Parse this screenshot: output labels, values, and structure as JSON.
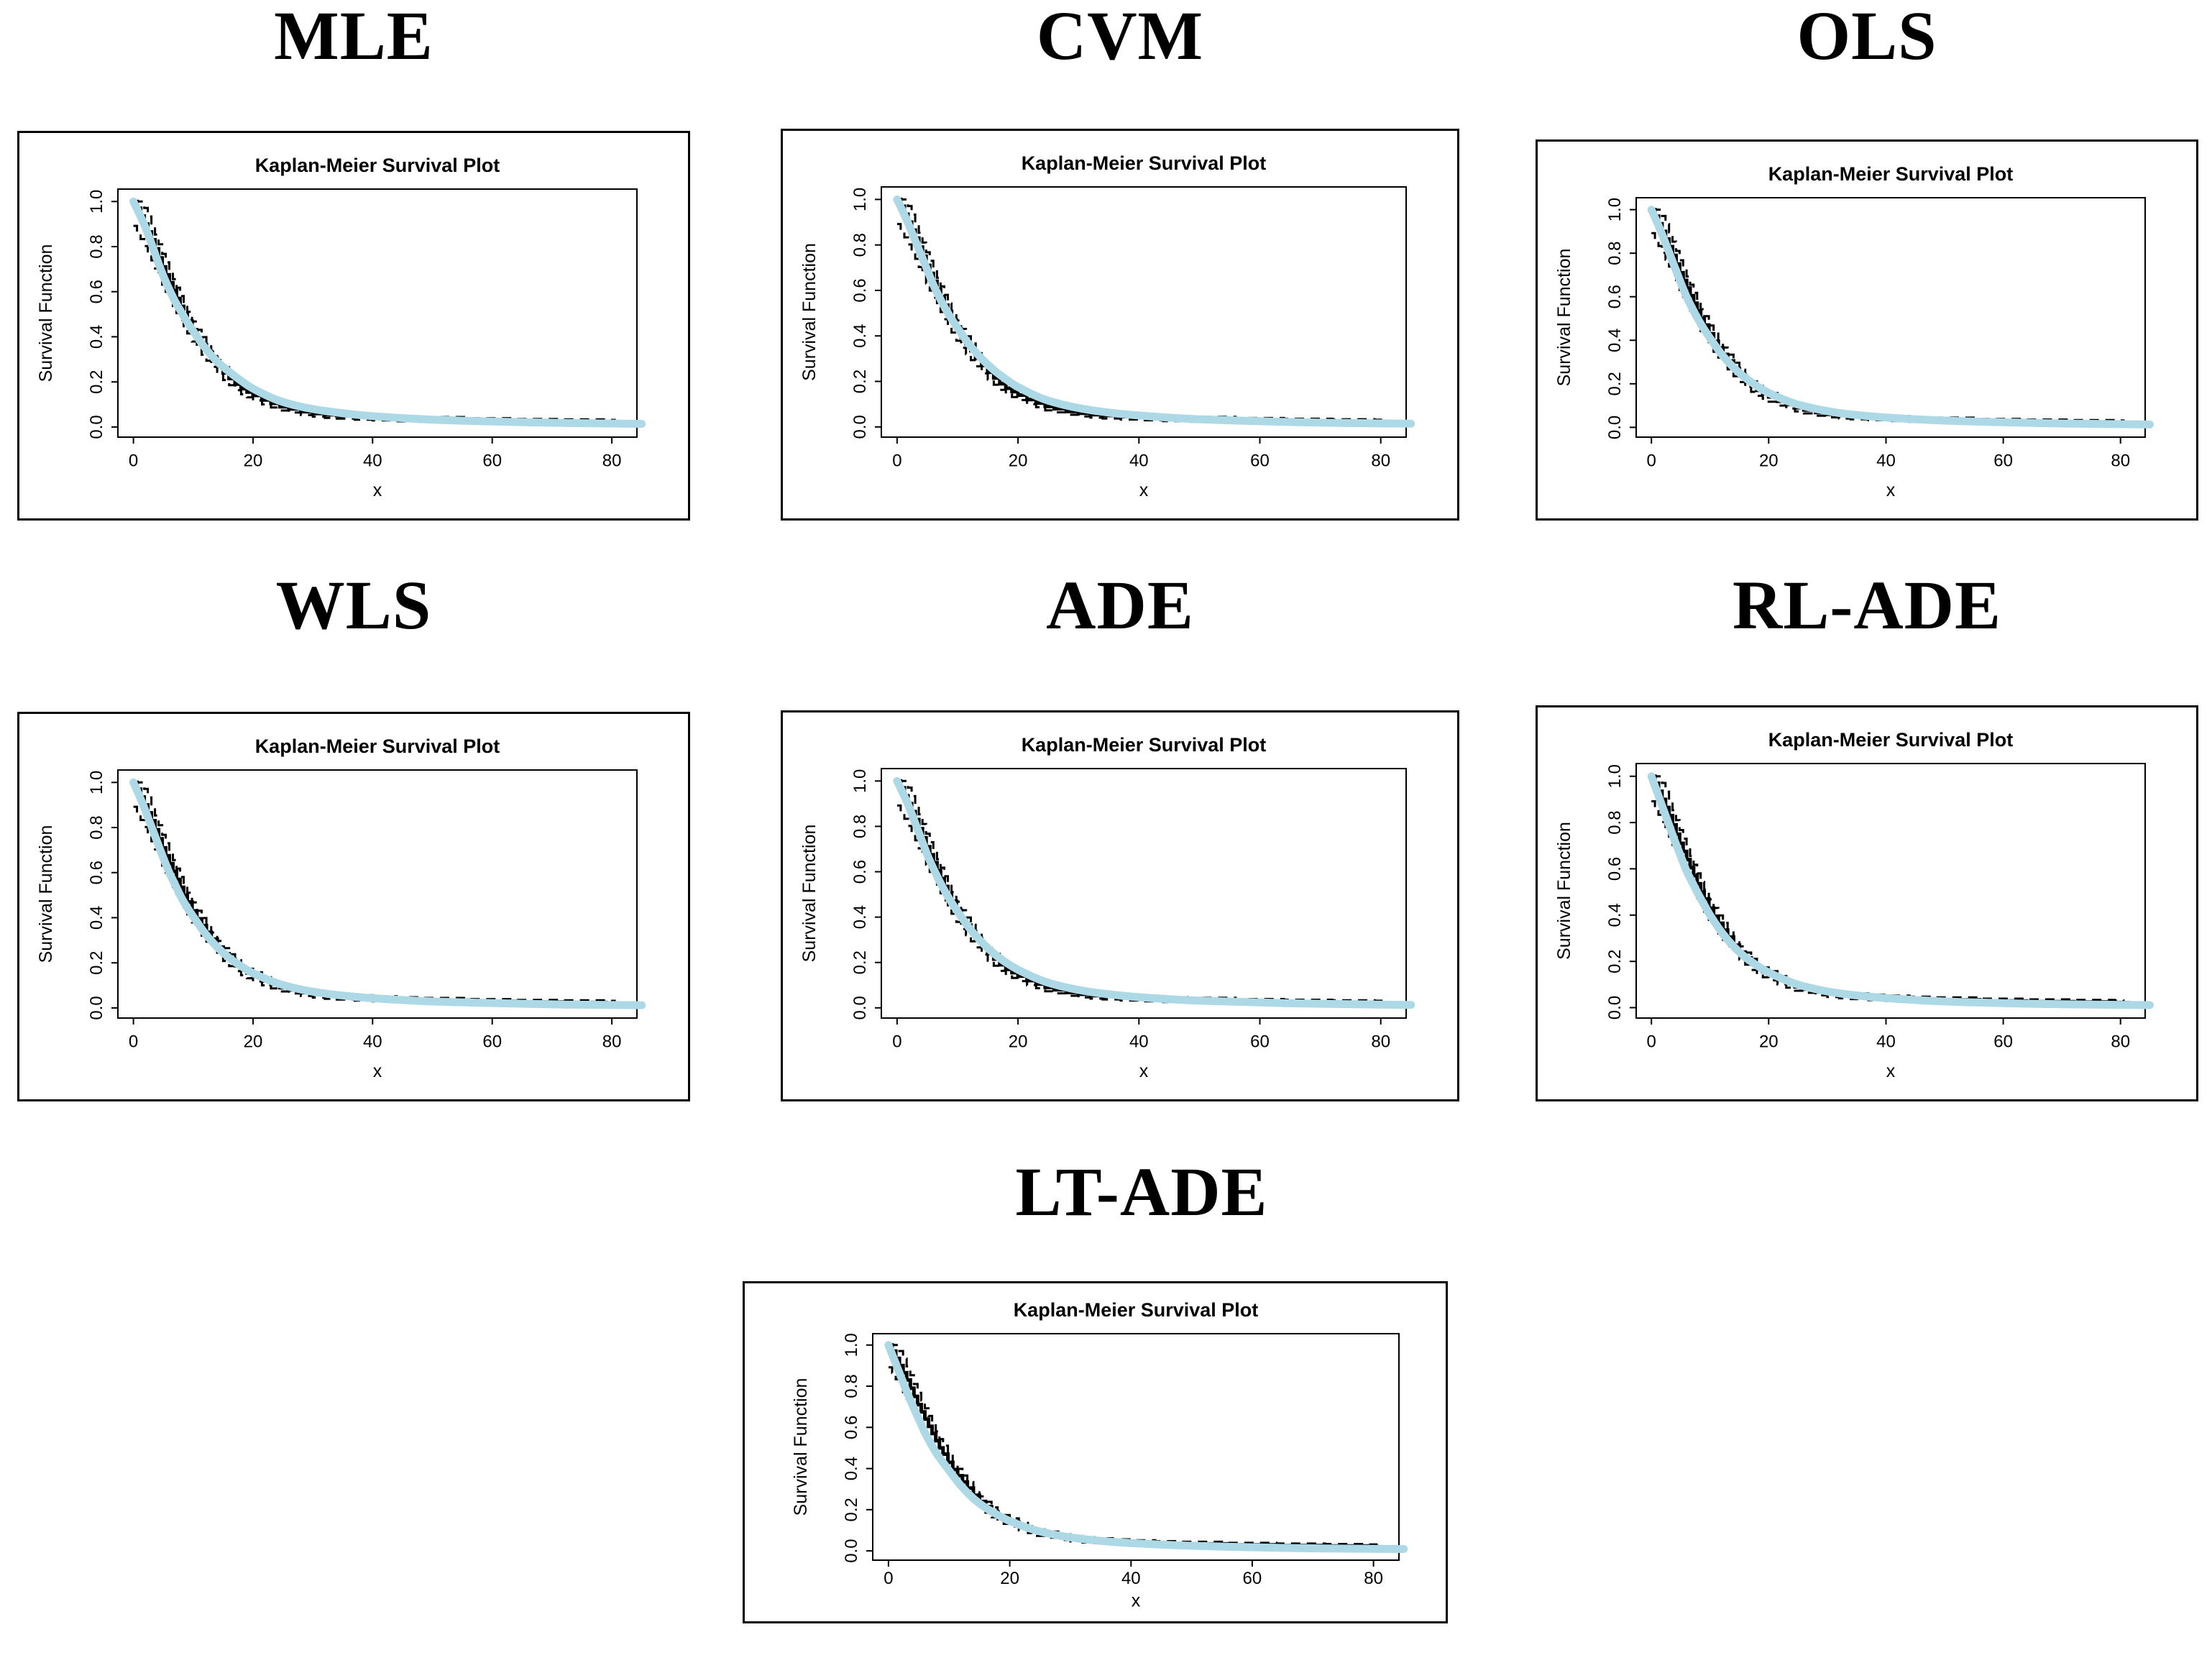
{
  "figure": {
    "kind": "R multi-panel figure",
    "background": "#ffffff",
    "text_color": "#000000"
  },
  "chart_data": {
    "type": "line",
    "description": "Seven Kaplan-Meier survival plots comparing parameter-estimation methods. Each panel shows the same Kaplan-Meier step estimate (solid black, with dashed confidence-band segments) overlaid by a thick light-blue fitted survival curve.",
    "common": {
      "title": "Kaplan-Meier Survival Plot",
      "xlabel": "x",
      "ylabel": "Survival Function",
      "xticks": [
        0,
        20,
        40,
        60,
        80
      ],
      "xtick_labels": [
        "0",
        "20",
        "40",
        "60",
        "80"
      ],
      "yticks": [
        0.0,
        0.2,
        0.4,
        0.6,
        0.8,
        1.0
      ],
      "ytick_labels": [
        "0.0",
        "0.2",
        "0.4",
        "0.6",
        "0.8",
        "1.0"
      ],
      "xlim": [
        0,
        82
      ],
      "ylim": [
        0,
        1
      ],
      "grid": false,
      "legend": "none",
      "box": true,
      "km_color": "#000000",
      "ci_style": "dashed",
      "fit_color": "#ADD8E6"
    },
    "km_estimate": {
      "name": "Kaplan-Meier estimate",
      "style": "step",
      "color": "#000000",
      "x": [
        0,
        0.6,
        1.2,
        1.8,
        2.4,
        3,
        3.6,
        4.2,
        4.8,
        5.4,
        6,
        6.6,
        7.2,
        7.8,
        8.4,
        9,
        9.8,
        10.6,
        11.4,
        12.2,
        13,
        14,
        15,
        16,
        17,
        18,
        19,
        20,
        21.5,
        23,
        24.5,
        26,
        28,
        30,
        32,
        34,
        37,
        40,
        44,
        48,
        56,
        64,
        72,
        79,
        80.5
      ],
      "y": [
        1.0,
        0.97,
        0.935,
        0.9,
        0.865,
        0.83,
        0.79,
        0.75,
        0.71,
        0.675,
        0.64,
        0.605,
        0.57,
        0.535,
        0.5,
        0.47,
        0.43,
        0.395,
        0.365,
        0.335,
        0.305,
        0.27,
        0.24,
        0.215,
        0.19,
        0.17,
        0.155,
        0.14,
        0.12,
        0.105,
        0.09,
        0.08,
        0.068,
        0.06,
        0.054,
        0.05,
        0.045,
        0.041,
        0.037,
        0.034,
        0.029,
        0.026,
        0.024,
        0.022,
        0.015
      ]
    },
    "fit_x": [
      0,
      1,
      2,
      3,
      4,
      5,
      6,
      7,
      8,
      9,
      10,
      12,
      14,
      16,
      18,
      20,
      24,
      28,
      32,
      36,
      40,
      48,
      56,
      64,
      72,
      85
    ],
    "panels": [
      {
        "method": "MLE",
        "fit_y": [
          1.0,
          0.945,
          0.885,
          0.815,
          0.74,
          0.67,
          0.61,
          0.555,
          0.51,
          0.465,
          0.425,
          0.35,
          0.29,
          0.245,
          0.205,
          0.17,
          0.12,
          0.09,
          0.071,
          0.058,
          0.048,
          0.035,
          0.027,
          0.022,
          0.018,
          0.014
        ]
      },
      {
        "method": "CVM",
        "fit_y": [
          1.0,
          0.945,
          0.885,
          0.82,
          0.755,
          0.69,
          0.625,
          0.57,
          0.52,
          0.475,
          0.435,
          0.36,
          0.3,
          0.25,
          0.21,
          0.175,
          0.125,
          0.094,
          0.074,
          0.06,
          0.05,
          0.036,
          0.028,
          0.022,
          0.018,
          0.014
        ]
      },
      {
        "method": "OLS",
        "fit_y": [
          1.0,
          0.94,
          0.875,
          0.805,
          0.735,
          0.665,
          0.6,
          0.545,
          0.495,
          0.45,
          0.41,
          0.335,
          0.275,
          0.228,
          0.19,
          0.158,
          0.113,
          0.085,
          0.066,
          0.054,
          0.045,
          0.033,
          0.026,
          0.021,
          0.017,
          0.013
        ]
      },
      {
        "method": "WLS",
        "fit_y": [
          1.0,
          0.94,
          0.875,
          0.805,
          0.735,
          0.665,
          0.6,
          0.545,
          0.49,
          0.445,
          0.405,
          0.33,
          0.27,
          0.222,
          0.185,
          0.154,
          0.11,
          0.082,
          0.064,
          0.052,
          0.043,
          0.031,
          0.024,
          0.019,
          0.015,
          0.012
        ]
      },
      {
        "method": "ADE",
        "fit_y": [
          1.0,
          0.945,
          0.885,
          0.815,
          0.745,
          0.675,
          0.615,
          0.56,
          0.51,
          0.465,
          0.425,
          0.35,
          0.29,
          0.24,
          0.2,
          0.168,
          0.12,
          0.09,
          0.07,
          0.057,
          0.047,
          0.034,
          0.027,
          0.021,
          0.017,
          0.013
        ]
      },
      {
        "method": "RL-ADE",
        "fit_y": [
          1.0,
          0.93,
          0.86,
          0.79,
          0.72,
          0.655,
          0.59,
          0.54,
          0.49,
          0.445,
          0.4,
          0.325,
          0.265,
          0.218,
          0.182,
          0.152,
          0.108,
          0.08,
          0.062,
          0.05,
          0.041,
          0.029,
          0.022,
          0.017,
          0.014,
          0.011
        ]
      },
      {
        "method": "LT-ADE",
        "fit_y": [
          1.0,
          0.925,
          0.85,
          0.775,
          0.705,
          0.64,
          0.575,
          0.52,
          0.47,
          0.43,
          0.39,
          0.315,
          0.255,
          0.21,
          0.175,
          0.145,
          0.102,
          0.075,
          0.058,
          0.046,
          0.038,
          0.027,
          0.02,
          0.015,
          0.012,
          0.009
        ]
      }
    ]
  }
}
